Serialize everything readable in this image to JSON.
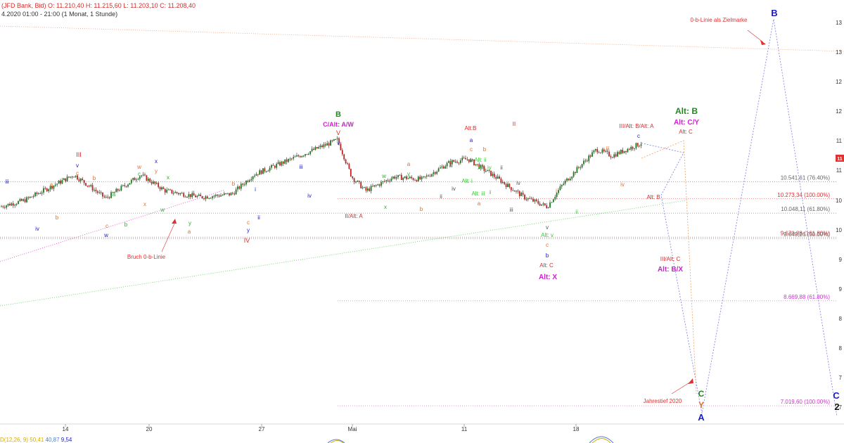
{
  "header": {
    "line1": "(JFD Bank, Bid)  O: 11.210,40  H: 11.215,60  L: 11.203,10  C: 11.208,40",
    "line2": "4.2020 01:00 - 21:00  (1 Monat, 1 Stunde)"
  },
  "indicator": {
    "p1": "D(12,26, 9)",
    "p2": "50,41",
    "p3": "40,87",
    "p4": "9,54"
  },
  "chart_data": {
    "type": "line",
    "title": "",
    "x_ticks": [
      "14",
      "20",
      "27",
      "Mai",
      "11",
      "18"
    ],
    "y_ticks": [
      "13",
      "13",
      "12",
      "12",
      "11",
      "11",
      "10",
      "10",
      "9",
      "9",
      "8",
      "8",
      "7",
      "7"
    ],
    "last_price_marker": "11",
    "ylim": [
      6600,
      13400
    ],
    "series": [
      {
        "values": [
          {
            "x": "Apr 10",
            "y": 10150
          },
          {
            "x": "Apr 13",
            "y": 10250
          },
          {
            "x": "Apr 14",
            "y": 10650
          },
          {
            "x": "Apr 17",
            "y": 10450
          },
          {
            "x": "Apr 17b",
            "y": 10280
          },
          {
            "x": "Apr 20",
            "y": 10650
          },
          {
            "x": "Apr 21",
            "y": 10400
          },
          {
            "x": "Apr 24",
            "y": 10300
          },
          {
            "x": "Apr 27",
            "y": 10350
          },
          {
            "x": "Apr 28",
            "y": 10650
          },
          {
            "x": "Apr 30",
            "y": 11200
          },
          {
            "x": "May 1",
            "y": 10620
          },
          {
            "x": "May 4",
            "y": 10400
          },
          {
            "x": "May 5",
            "y": 10620
          },
          {
            "x": "May 7",
            "y": 10580
          },
          {
            "x": "May 8",
            "y": 10850
          },
          {
            "x": "May 11",
            "y": 10900
          },
          {
            "x": "May 12",
            "y": 10650
          },
          {
            "x": "May 14",
            "y": 10300
          },
          {
            "x": "May 15",
            "y": 10150
          },
          {
            "x": "May 18",
            "y": 10500
          },
          {
            "x": "May 19",
            "y": 10850
          },
          {
            "x": "May 20",
            "y": 11050
          },
          {
            "x": "May 21",
            "y": 10950
          },
          {
            "x": "May 22",
            "y": 11150
          }
        ]
      }
    ],
    "projection_path": [
      {
        "label": "Alt: C",
        "y": 11000
      },
      {
        "label": "Alt: B",
        "y": 10330
      },
      {
        "label": "C",
        "y": 6900
      },
      {
        "label": "B",
        "y": 13100
      },
      {
        "label": "C",
        "y": 6850
      }
    ],
    "levels": [
      {
        "label": "10.541,61 (76.40%)",
        "value": 10541.61,
        "color": "#666666"
      },
      {
        "label": "10.273,34 (100.00%)",
        "value": 10273.34,
        "color": "#e03030"
      },
      {
        "label": "10.048,11 (61.80%)",
        "value": 10048.11,
        "color": "#666666"
      },
      {
        "label": "9.670,88 (161.80%)",
        "value": 9670.88,
        "color": "#e03030"
      },
      {
        "label": "9.649,26 (50.00%)",
        "value": 9649.26,
        "color": "#666666"
      },
      {
        "label": "8.669,88 (61.80%)",
        "value": 8669.88,
        "color": "#cc33cc"
      },
      {
        "label": "7.019,60 (100.00%)",
        "value": 7019.6,
        "color": "#cc33cc"
      }
    ],
    "annotations": [
      {
        "text": "0-b-Linie als Zielmarke",
        "color": "#e03030"
      },
      {
        "text": "Bruch 0-b-Linie",
        "color": "#e03030"
      },
      {
        "text": "Jahrestief 2020",
        "color": "#e03030"
      }
    ],
    "wave_labels": [
      {
        "text": "iii",
        "color": "#1a1acc"
      },
      {
        "text": "iv",
        "color": "#1a1acc"
      },
      {
        "text": "III",
        "color": "#d62c2c"
      },
      {
        "text": "v",
        "color": "#1a1acc"
      },
      {
        "text": "c",
        "color": "#e07030"
      },
      {
        "text": "a",
        "color": "#e07030"
      },
      {
        "text": "b",
        "color": "#e07030"
      },
      {
        "text": "b",
        "color": "#e07030"
      },
      {
        "text": "a",
        "color": "#33aa33"
      },
      {
        "text": "c",
        "color": "#e07030"
      },
      {
        "text": "w",
        "color": "#1a1acc"
      },
      {
        "text": "b",
        "color": "#33aa33"
      },
      {
        "text": "w",
        "color": "#e07030"
      },
      {
        "text": "c",
        "color": "#33aa33"
      },
      {
        "text": "y",
        "color": "#e07030"
      },
      {
        "text": "x",
        "color": "#1a1acc"
      },
      {
        "text": "x",
        "color": "#e07030"
      },
      {
        "text": "x",
        "color": "#33aa33"
      },
      {
        "text": "w",
        "color": "#33aa33"
      },
      {
        "text": "y",
        "color": "#33aa33"
      },
      {
        "text": "a",
        "color": "#e07030"
      },
      {
        "text": "b",
        "color": "#e07030"
      },
      {
        "text": "c",
        "color": "#e07030"
      },
      {
        "text": "y",
        "color": "#1a1acc"
      },
      {
        "text": "IV",
        "color": "#d62c2c"
      },
      {
        "text": "i",
        "color": "#1a1acc"
      },
      {
        "text": "ii",
        "color": "#1a1acc"
      },
      {
        "text": "iii",
        "color": "#1a1acc"
      },
      {
        "text": "iv",
        "color": "#1a1acc"
      },
      {
        "text": "B",
        "color": "#228822"
      },
      {
        "text": "C/Alt: A/W",
        "color": "#cc22cc"
      },
      {
        "text": "V",
        "color": "#d62c2c"
      },
      {
        "text": "v",
        "color": "#1a1acc"
      },
      {
        "text": "II/Alt: A",
        "color": "#d62c2c"
      },
      {
        "text": "w",
        "color": "#33aa33"
      },
      {
        "text": "x",
        "color": "#33aa33"
      },
      {
        "text": "y",
        "color": "#33aa33"
      },
      {
        "text": "a",
        "color": "#e07030"
      },
      {
        "text": "b",
        "color": "#e07030"
      },
      {
        "text": "i",
        "color": "#555555"
      },
      {
        "text": "ii",
        "color": "#555555"
      },
      {
        "text": "iii",
        "color": "#555555"
      },
      {
        "text": "iv",
        "color": "#555555"
      },
      {
        "text": "Alt:B",
        "color": "#d62c2c"
      },
      {
        "text": "a",
        "color": "#1a1acc"
      },
      {
        "text": "c",
        "color": "#e07030"
      },
      {
        "text": "b",
        "color": "#e07030"
      },
      {
        "text": "v",
        "color": "#555555"
      },
      {
        "text": "Alt: ii",
        "color": "#33cc33"
      },
      {
        "text": "Alt: iv",
        "color": "#33cc33"
      },
      {
        "text": "Alt: i",
        "color": "#33cc33"
      },
      {
        "text": "Alt: iii",
        "color": "#33cc33"
      },
      {
        "text": "a",
        "color": "#e07030"
      },
      {
        "text": "i",
        "color": "#555555"
      },
      {
        "text": "ii",
        "color": "#555555"
      },
      {
        "text": "II",
        "color": "#d62c2c"
      },
      {
        "text": "iv",
        "color": "#555555"
      },
      {
        "text": "iii",
        "color": "#555555"
      },
      {
        "text": "v",
        "color": "#555555"
      },
      {
        "text": "Alt: v",
        "color": "#33cc33"
      },
      {
        "text": "c",
        "color": "#e07030"
      },
      {
        "text": "b",
        "color": "#1a1acc"
      },
      {
        "text": "Alt: C",
        "color": "#d62c2c"
      },
      {
        "text": "Alt: X",
        "color": "#cc22cc"
      },
      {
        "text": "i",
        "color": "#e07030"
      },
      {
        "text": "ii",
        "color": "#33cc33"
      },
      {
        "text": "iii",
        "color": "#e07030"
      },
      {
        "text": "iv",
        "color": "#e07030"
      },
      {
        "text": "v",
        "color": "#e07030"
      },
      {
        "text": "c",
        "color": "#1a1acc"
      },
      {
        "text": "III/Alt: B/Alt: A",
        "color": "#d62c2c"
      },
      {
        "text": "Alt: B",
        "color": "#228822"
      },
      {
        "text": "Alt: C/Y",
        "color": "#cc22cc"
      },
      {
        "text": "Alt: C",
        "color": "#d62c2c"
      },
      {
        "text": "Alt: B",
        "color": "#d62c2c"
      },
      {
        "text": "III/Alt: C",
        "color": "#d62c2c"
      },
      {
        "text": "Alt: B/X",
        "color": "#cc22cc"
      },
      {
        "text": "C",
        "color": "#228822"
      },
      {
        "text": "Y",
        "color": "#e07030"
      },
      {
        "text": "A",
        "color": "#1a1acc"
      },
      {
        "text": "B",
        "color": "#1a1acc"
      },
      {
        "text": "C",
        "color": "#1a1acc"
      },
      {
        "text": "2",
        "color": "#111111"
      }
    ]
  }
}
